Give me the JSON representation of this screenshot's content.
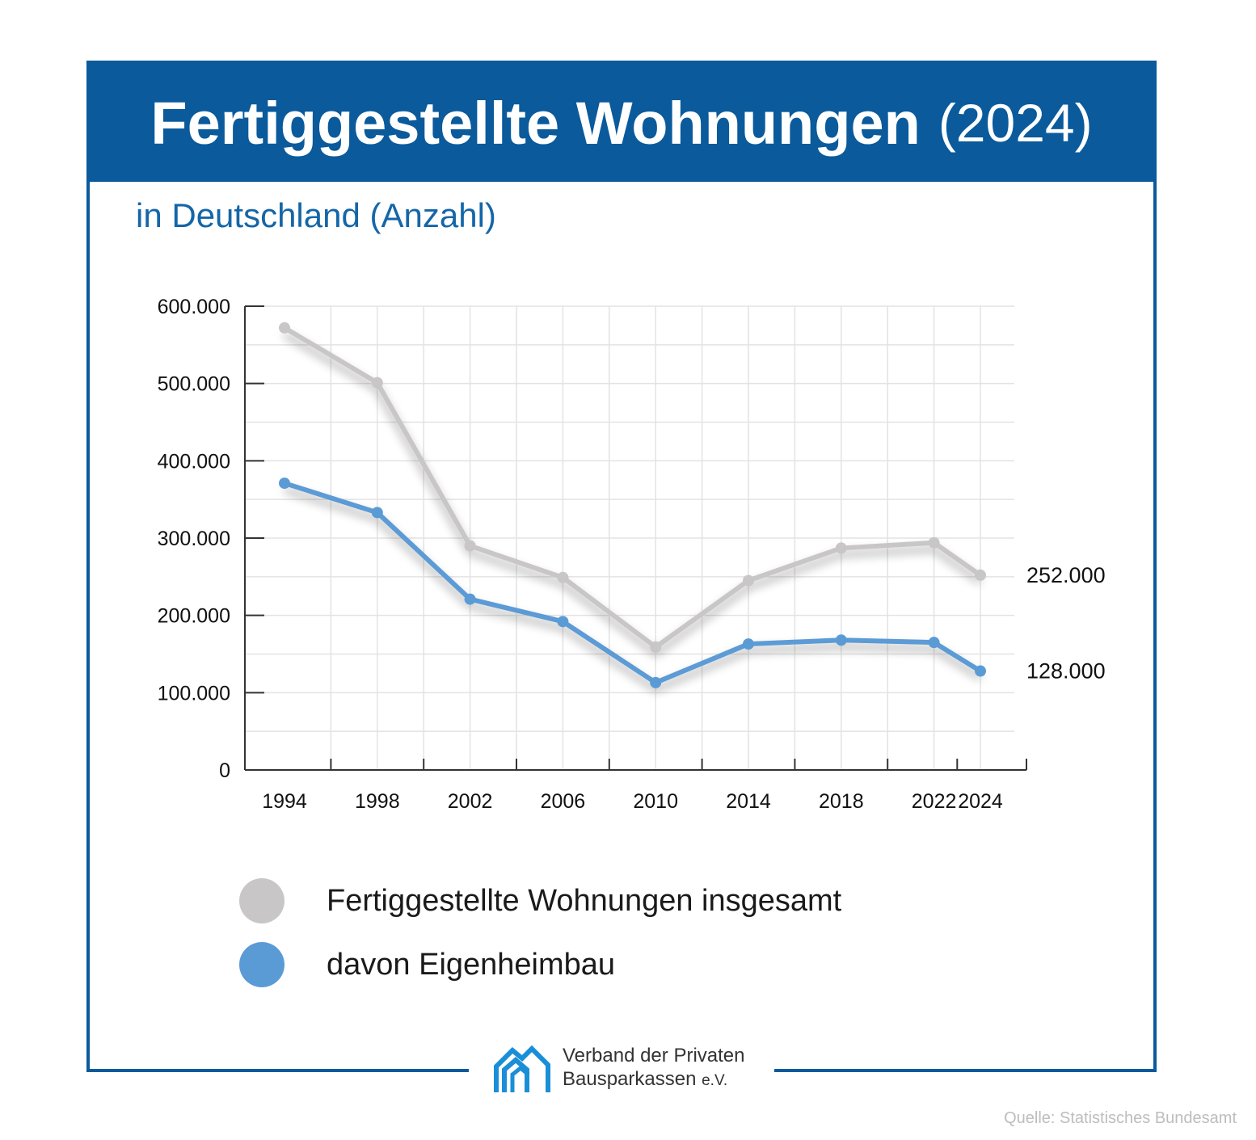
{
  "header": {
    "title": "Fertiggestellte Wohnungen",
    "year": "(2024)"
  },
  "subtitle": "in Deutschland (Anzahl)",
  "colors": {
    "brand": "#0a5a9c",
    "total_series": "#c9c6c7",
    "eigenheim_series": "#5b9bd5"
  },
  "chart_data": {
    "type": "line",
    "x": [
      "1994",
      "1998",
      "2002",
      "2006",
      "2010",
      "2014",
      "2018",
      "2022",
      "2024"
    ],
    "yticks": [
      "0",
      "100.000",
      "200.000",
      "300.000",
      "400.000",
      "500.000",
      "600.000"
    ],
    "ylim": [
      0,
      600000
    ],
    "grid": true,
    "series": [
      {
        "name": "Fertiggestellte Wohnungen insgesamt",
        "color": "#c9c6c7",
        "values": [
          572000,
          501000,
          290000,
          249000,
          159000,
          245000,
          287000,
          294000,
          252000
        ]
      },
      {
        "name": "davon Eigenheimbau",
        "color": "#5b9bd5",
        "values": [
          371000,
          333000,
          221000,
          192000,
          113000,
          163000,
          168000,
          165000,
          128000
        ]
      }
    ],
    "end_labels": [
      "252.000",
      "128.000"
    ]
  },
  "legend": [
    {
      "label": "Fertiggestellte Wohnungen insgesamt",
      "color": "#c9c6c7"
    },
    {
      "label": "davon Eigenheimbau",
      "color": "#5b9bd5"
    }
  ],
  "logo": {
    "icon": "house-logo-icon",
    "line1": "Verband der Privaten",
    "line2": "Bausparkassen",
    "suffix": "e.V."
  },
  "source": "Quelle: Statistisches Bundesamt"
}
